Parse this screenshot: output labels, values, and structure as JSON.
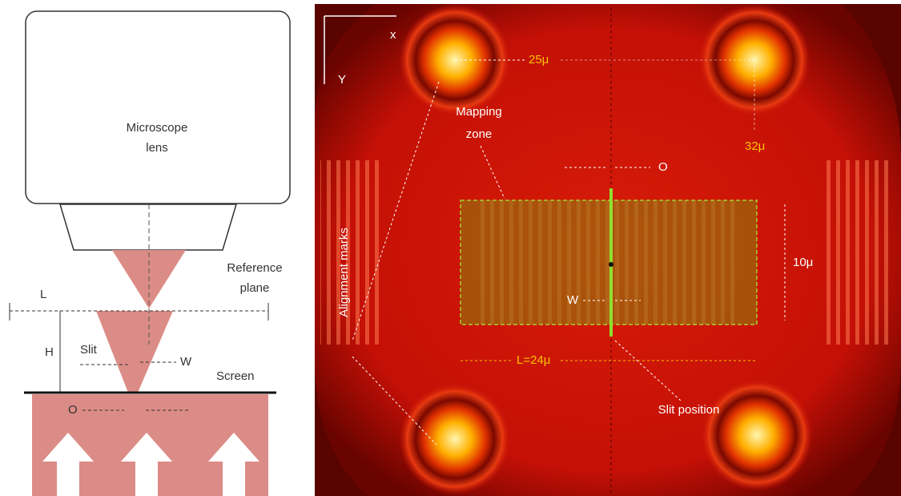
{
  "left_panel": {
    "lens_label_line1": "Microscope",
    "lens_label_line2": "lens",
    "reference_label_line1": "Reference",
    "reference_label_line2": "plane",
    "l_label": "L",
    "h_label": "H",
    "slit_label": "Slit",
    "w_label": "W",
    "screen_label": "Screen",
    "o_label": "O"
  },
  "right_panel": {
    "x_axis_label": "x",
    "y_axis_label": "Y",
    "spacing_x_label": "25μ",
    "mapping_zone_line1": "Mapping",
    "mapping_zone_line2": "zone",
    "spacing_y_label": "32μ",
    "o_label": "O",
    "height_label": "10μ",
    "w_label": "W",
    "alignment_marks_label": "Alignment marks",
    "length_label": "L=24μ",
    "slit_position_label": "Slit position"
  }
}
